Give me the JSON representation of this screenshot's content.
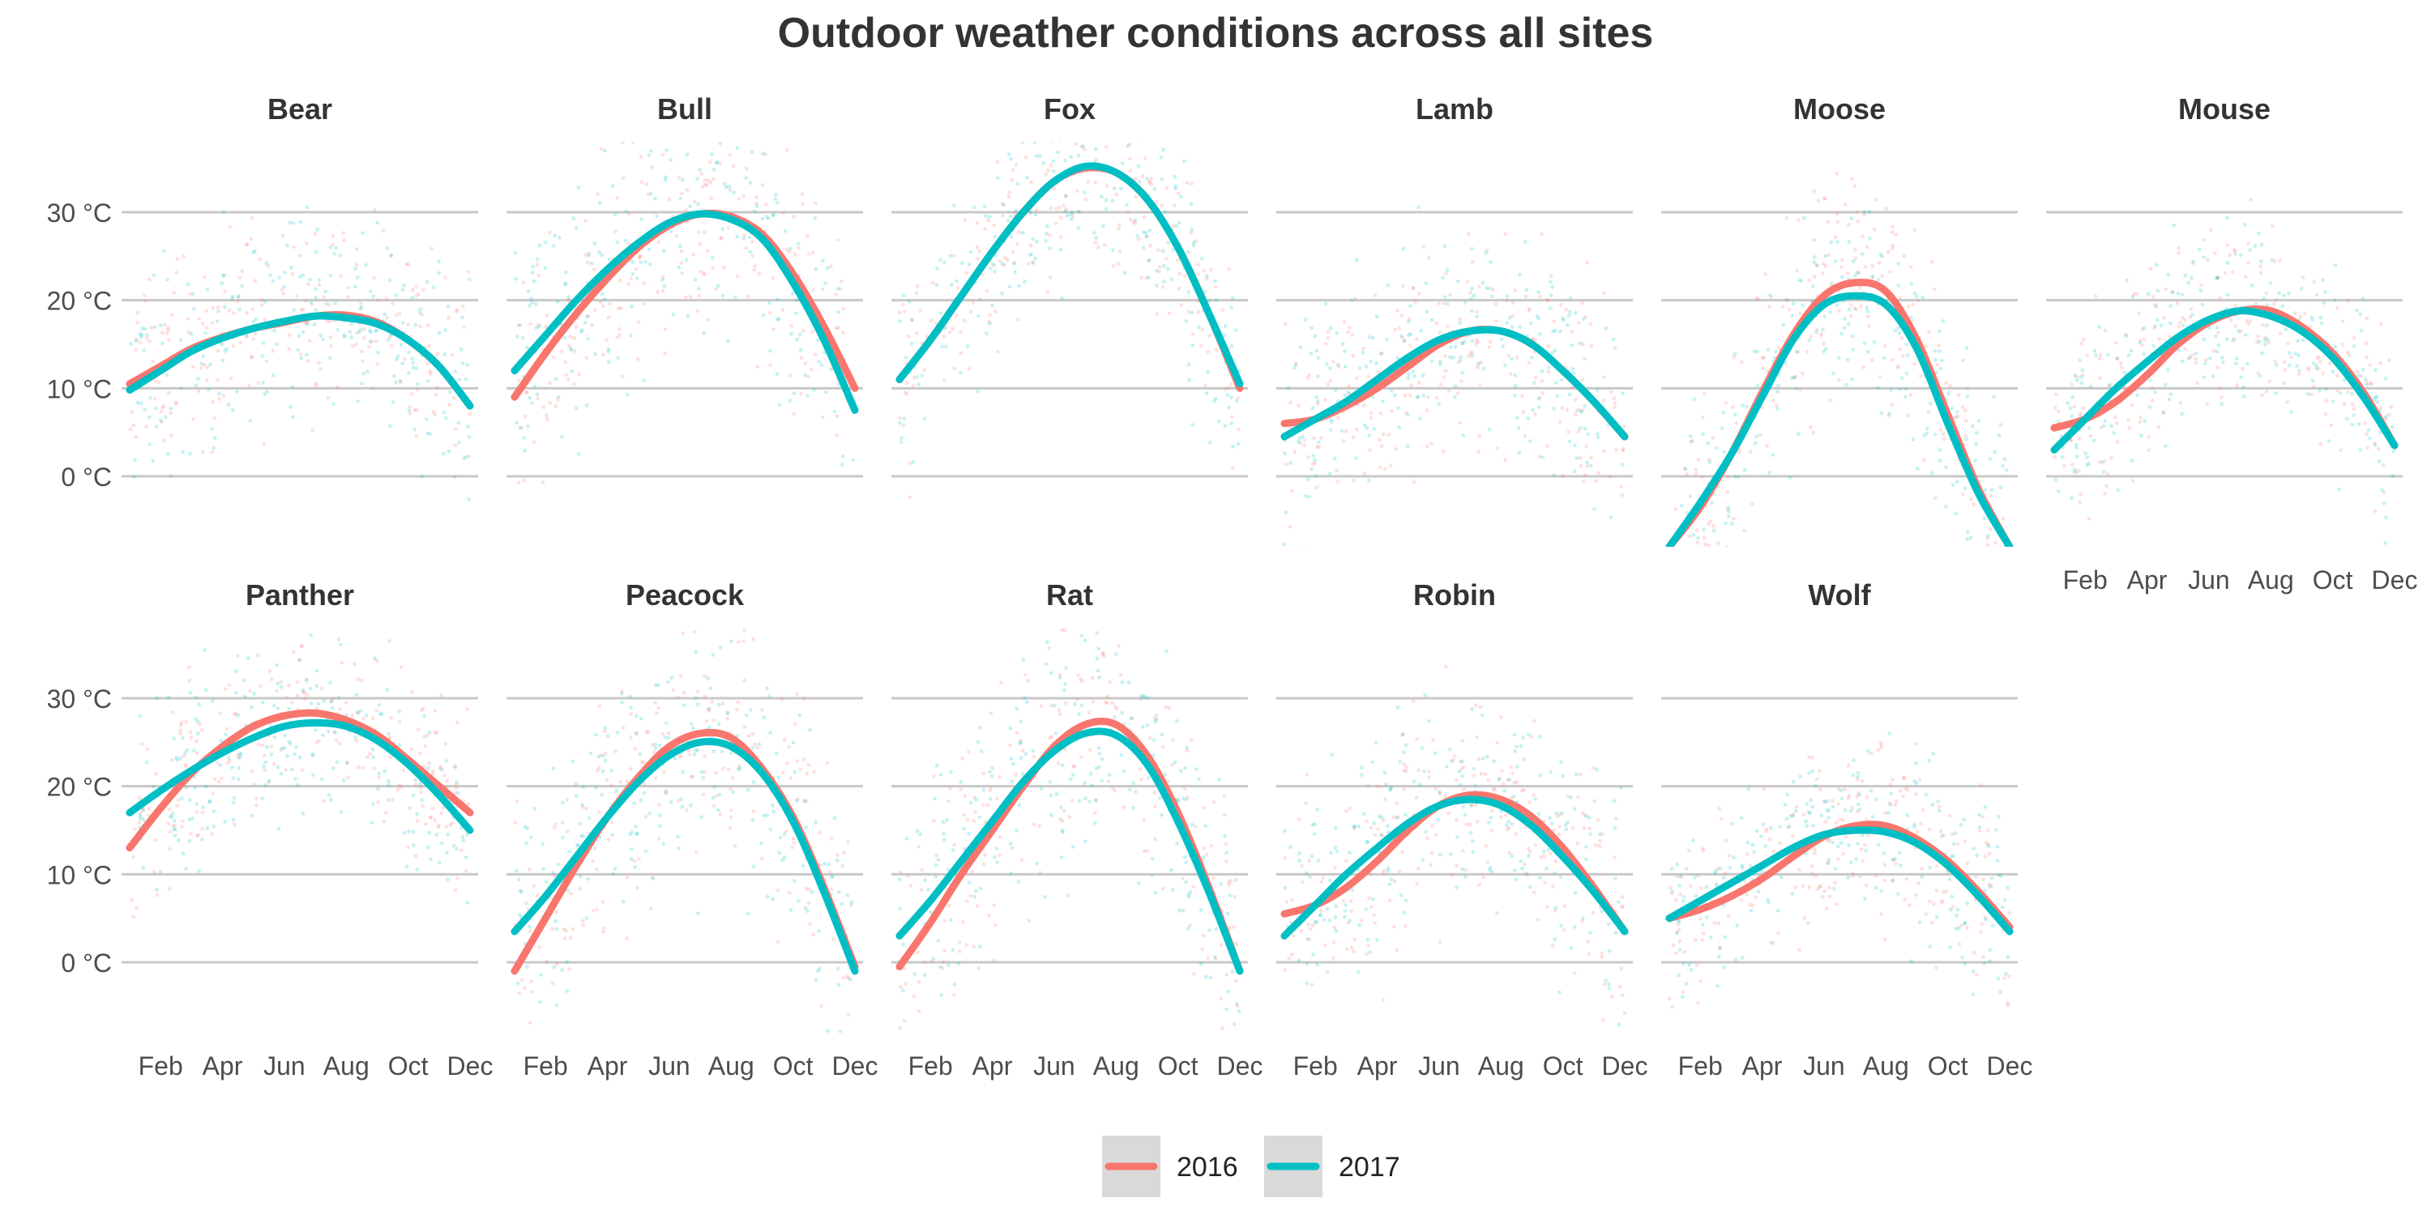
{
  "chart_data": {
    "type": "line",
    "title": "Outdoor weather conditions across all sites",
    "xlabel": "",
    "ylabel": "",
    "x_ticks": [
      "Feb",
      "Apr",
      "Jun",
      "Aug",
      "Oct",
      "Dec"
    ],
    "x_tick_months": [
      2,
      4,
      6,
      8,
      10,
      12
    ],
    "y_ticks": [
      0,
      10,
      20,
      30
    ],
    "y_tick_labels": [
      "0 °C",
      "10 °C",
      "20 °C",
      "30 °C"
    ],
    "xlim": [
      1,
      12
    ],
    "ylim": [
      -8,
      38
    ],
    "legend": {
      "position": "bottom",
      "entries": [
        "2016",
        "2017"
      ]
    },
    "colors": {
      "2016": "#F8766D",
      "2017": "#00BFC4"
    },
    "x_months": [
      1,
      2,
      3,
      4,
      5,
      6,
      7,
      8,
      9,
      10,
      11,
      12
    ],
    "panels": [
      {
        "site": "Bear",
        "spread": 6,
        "series": [
          {
            "name": "2016",
            "values": [
              10.5,
              12.5,
              14.5,
              15.8,
              16.8,
              17.5,
              18.2,
              18.3,
              17.5,
              15.5,
              12.5,
              8
            ]
          },
          {
            "name": "2017",
            "values": [
              9.8,
              12,
              14.2,
              15.7,
              16.8,
              17.6,
              18.2,
              18,
              17.3,
              15.5,
              12.5,
              8
            ]
          }
        ]
      },
      {
        "site": "Bull",
        "spread": 7,
        "series": [
          {
            "name": "2016",
            "values": [
              9,
              14,
              18.5,
              22.5,
              26,
              28.5,
              29.8,
              29.5,
              27.5,
              23,
              17,
              10
            ]
          },
          {
            "name": "2017",
            "values": [
              12,
              16,
              20,
              23.5,
              26.5,
              28.8,
              29.8,
              29.2,
              27,
              22,
              15.5,
              7.5
            ]
          }
        ]
      },
      {
        "site": "Fox",
        "spread": 6,
        "series": [
          {
            "name": "2016",
            "values": [
              11,
              15.5,
              20.5,
              25.5,
              30,
              33.5,
              35,
              34.5,
              31.5,
              26,
              18.5,
              10
            ]
          },
          {
            "name": "2017",
            "values": [
              11,
              15.5,
              20.5,
              25.5,
              30,
              33.5,
              35.2,
              34.5,
              31.5,
              26,
              18.5,
              10.5
            ]
          }
        ]
      },
      {
        "site": "Lamb",
        "spread": 6,
        "series": [
          {
            "name": "2016",
            "values": [
              6,
              6.5,
              8,
              10,
              12.5,
              15,
              16.5,
              16.5,
              15,
              12,
              8.5,
              4.5
            ]
          },
          {
            "name": "2017",
            "values": [
              4.5,
              6.5,
              8.5,
              11,
              13.5,
              15.5,
              16.5,
              16.5,
              15,
              12,
              8.5,
              4.5
            ]
          }
        ]
      },
      {
        "site": "Moose",
        "spread": 6,
        "series": [
          {
            "name": "2016",
            "values": [
              -8,
              -3.5,
              2.5,
              9.5,
              16,
              20.5,
              22,
              21,
              15.5,
              7,
              -1.5,
              -8
            ]
          },
          {
            "name": "2017",
            "values": [
              -8,
              -3,
              2.5,
              9,
              15.5,
              19.5,
              20.5,
              19.5,
              14.5,
              6,
              -2,
              -8
            ]
          }
        ]
      },
      {
        "site": "Mouse",
        "spread": 5,
        "series": [
          {
            "name": "2016",
            "values": [
              5.5,
              6.5,
              8.5,
              11.5,
              15,
              17.5,
              18.8,
              18.8,
              17,
              14,
              9.5,
              3.5
            ]
          },
          {
            "name": "2017",
            "values": [
              3,
              6.5,
              10,
              13,
              15.8,
              17.8,
              18.8,
              18.2,
              16.5,
              13.5,
              9,
              3.5
            ]
          }
        ]
      },
      {
        "site": "Panther",
        "spread": 5,
        "series": [
          {
            "name": "2016",
            "values": [
              13,
              17.5,
              21.5,
              24.5,
              26.8,
              28,
              28.3,
              27.5,
              25.8,
              23,
              20,
              17
            ]
          },
          {
            "name": "2017",
            "values": [
              17,
              19.5,
              21.8,
              23.8,
              25.5,
              26.8,
              27.2,
              26.8,
              25.2,
              22.5,
              19,
              15
            ]
          }
        ]
      },
      {
        "site": "Peacock",
        "spread": 7,
        "series": [
          {
            "name": "2016",
            "values": [
              -1,
              5,
              11,
              16.5,
              21,
              24.5,
              26,
              25.5,
              22,
              16.5,
              8.5,
              -0.5
            ]
          },
          {
            "name": "2017",
            "values": [
              3.5,
              7.5,
              12,
              16.5,
              20.5,
              23.5,
              25,
              24.5,
              21.5,
              16,
              8,
              -1
            ]
          }
        ]
      },
      {
        "site": "Rat",
        "spread": 7,
        "series": [
          {
            "name": "2016",
            "values": [
              -0.5,
              4.5,
              10,
              15,
              20,
              24.5,
              27,
              27,
              23.5,
              17,
              8.5,
              -1
            ]
          },
          {
            "name": "2017",
            "values": [
              3,
              7,
              11.5,
              16,
              20.5,
              24,
              26,
              25.8,
              22.5,
              16,
              8,
              -1
            ]
          }
        ]
      },
      {
        "site": "Robin",
        "spread": 6,
        "series": [
          {
            "name": "2016",
            "values": [
              5.5,
              6.5,
              8.5,
              11.5,
              15,
              17.8,
              19,
              18.5,
              16.5,
              13,
              8.5,
              3.5
            ]
          },
          {
            "name": "2017",
            "values": [
              3,
              6.5,
              10,
              13,
              15.8,
              17.8,
              18.5,
              17.8,
              15.5,
              12,
              8,
              3.5
            ]
          }
        ]
      },
      {
        "site": "Wolf",
        "spread": 5,
        "series": [
          {
            "name": "2016",
            "values": [
              5,
              6,
              7.5,
              9.5,
              12,
              14.3,
              15.5,
              15.5,
              14,
              11.5,
              8,
              4
            ]
          },
          {
            "name": "2017",
            "values": [
              5,
              7,
              9,
              11,
              13,
              14.5,
              15,
              14.8,
              13.5,
              11,
              7.5,
              3.5
            ]
          }
        ]
      }
    ]
  }
}
